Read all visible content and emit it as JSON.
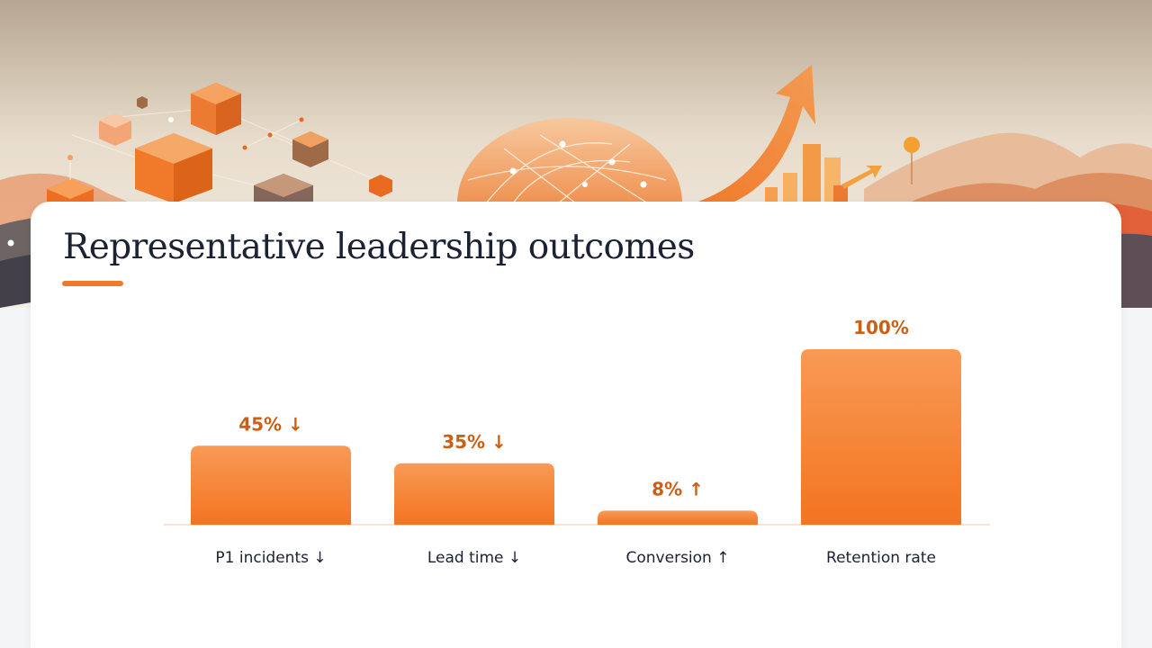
{
  "slide": {
    "title": "Representative leadership outcomes"
  },
  "colors": {
    "accent": "#f07a2a",
    "label": "#cc5f14",
    "text": "#1c2233",
    "bar_top": "#f89a55",
    "bar_bottom": "#f47420",
    "baseline": "#f8d7c2"
  },
  "banner": {
    "icons": [
      "isometric-cube-icons",
      "network-globe-illustration",
      "rising-arrow-illustration",
      "mountain-silhouettes"
    ]
  },
  "chart_data": {
    "type": "bar",
    "categories": [
      "P1 incidents ↓",
      "Lead time ↓",
      "Conversion ↑",
      "Retention rate"
    ],
    "values": [
      45,
      35,
      8,
      100
    ],
    "value_labels": [
      "45% ↓",
      "35% ↓",
      "8% ↑",
      "100%"
    ],
    "title": "",
    "xlabel": "",
    "ylabel": "",
    "ylim": [
      0,
      100
    ],
    "grid": false,
    "legend": "none"
  }
}
